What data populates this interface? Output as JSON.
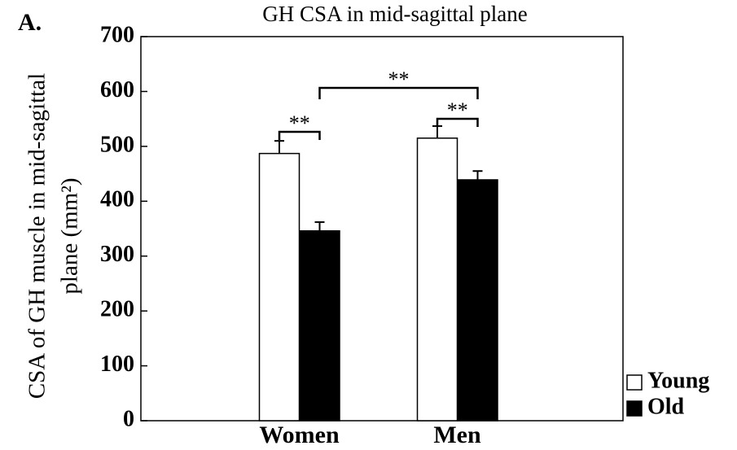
{
  "panel_label": "A.",
  "chart_data": {
    "type": "bar",
    "title": "GH CSA in mid-sagittal plane",
    "ylabel": [
      "CSA of GH muscle in mid-sagittal",
      "plane (mm²)"
    ],
    "categories": [
      "Women",
      "Men"
    ],
    "series": [
      {
        "name": "Young",
        "color": "#ffffff",
        "values": [
          487,
          515
        ],
        "errors": [
          23,
          22
        ]
      },
      {
        "name": "Old",
        "color": "#000000",
        "values": [
          346,
          439
        ],
        "errors": [
          16,
          16
        ]
      }
    ],
    "annotations": [
      "**",
      "**",
      "**"
    ],
    "ylim": [
      0,
      700
    ],
    "yticks": [
      0,
      100,
      200,
      300,
      400,
      500,
      600,
      700
    ],
    "legend": "lower right outside"
  }
}
